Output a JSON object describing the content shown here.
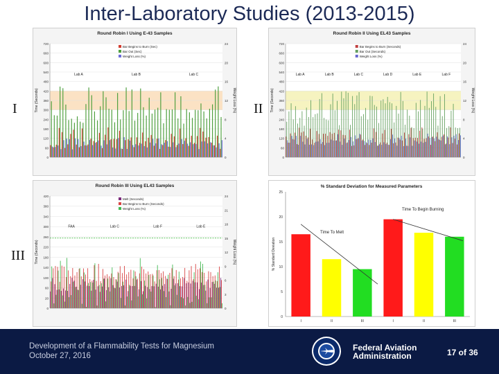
{
  "slide": {
    "title": "Inter-Laboratory Studies (2013-2015)",
    "label_I": "I",
    "label_II": "II",
    "label_III": "III"
  },
  "footer": {
    "line1": "Development of a Flammability Tests for Magnesium",
    "line2": "October 27, 2016",
    "agency_line1": "Federal Aviation",
    "agency_line2": "Administration",
    "page": "17 of 36",
    "seal_text": "FEDERAL AVIATION ADMINISTRATION"
  },
  "colors": {
    "title": "#1c2a56",
    "footer_bg": "#0b1a44",
    "band_orange": "#fbe2c4",
    "band_yellow": "#f6f3c0",
    "red": "#e01b1b",
    "yellow": "#f0f000",
    "green": "#22cc22"
  },
  "chart_data": [
    {
      "type": "bar",
      "title": "Round Robin I Using E-43 Samples",
      "ylabel": "Time (Seconds)",
      "y2label": "Weight Loss (%)",
      "ylim": [
        0,
        720
      ],
      "y2lim": [
        0,
        24
      ],
      "yticks": [
        "720",
        "660",
        "600",
        "540",
        "480",
        "420",
        "360",
        "300",
        "240",
        "180",
        "120",
        "60",
        "0"
      ],
      "y2ticks": [
        "24",
        "20",
        "16",
        "12",
        "8",
        "4",
        "0"
      ],
      "legend": [
        "Bar Begins to Burn (Sec)",
        "Bar Out (Sec)",
        "Weight Loss (%)"
      ],
      "legend_placement": "top",
      "groups": [
        "Lab A",
        "Lab B",
        "Lab C"
      ],
      "band": [
        300,
        420
      ],
      "points": 60,
      "series": [
        {
          "name": "Bar Begins to Burn (Sec)",
          "color": "#d23a2e",
          "level": 120,
          "spread": 70
        },
        {
          "name": "Bar Out (Sec)",
          "color": "#4c9e3c",
          "level": 330,
          "spread": 120
        },
        {
          "name": "Weight Loss (%)",
          "color": "#6a6ad8",
          "level": 90,
          "spread": 40
        }
      ]
    },
    {
      "type": "bar",
      "title": "Round Robin II Using EL43 Samples",
      "ylabel": "Time (Seconds)",
      "y2label": "Weight Loss (%)",
      "ylim": [
        0,
        720
      ],
      "y2lim": [
        0,
        24
      ],
      "yticks": [
        "720",
        "660",
        "600",
        "540",
        "480",
        "420",
        "360",
        "300",
        "240",
        "180",
        "120",
        "60",
        "0"
      ],
      "y2ticks": [
        "24",
        "20",
        "16",
        "12",
        "8",
        "4",
        "0"
      ],
      "legend": [
        "Bar Begins to Burn (Seconds)",
        "Bar Out (Seconds)",
        "Weight Loss (%)"
      ],
      "legend_placement": "top",
      "groups": [
        "Lab A",
        "Lab B",
        "Lab C",
        "Lab D",
        "Lab E",
        "Lab F"
      ],
      "band": [
        300,
        420
      ],
      "points": 80,
      "series": [
        {
          "name": "Bar Begins to Burn (Seconds)",
          "color": "#c04040",
          "level": 130,
          "spread": 60
        },
        {
          "name": "Bar Out (Seconds)",
          "color": "#64a060",
          "level": 300,
          "spread": 120
        },
        {
          "name": "Weight Loss (%)",
          "color": "#6868d0",
          "level": 110,
          "spread": 40
        }
      ]
    },
    {
      "type": "bar",
      "title": "Round Robin III Using EL43 Samples",
      "ylabel": "Time (Seconds)",
      "y2label": "Weight Loss (%)",
      "ylim": [
        0,
        480
      ],
      "y2lim": [
        0,
        24
      ],
      "yticks": [
        "420",
        "380",
        "340",
        "300",
        "260",
        "220",
        "180",
        "140",
        "100",
        "60",
        "20",
        "0"
      ],
      "y2ticks": [
        "24",
        "21",
        "18",
        "15",
        "12",
        "9",
        "6",
        "3",
        "0"
      ],
      "legend": [
        "Melt (Seconds)",
        "Bar Begins to Burn (Seconds)",
        "Weight Loss (%)"
      ],
      "legend_placement": "top",
      "groups": [
        "FAA",
        "Lab C",
        "Lab F",
        "Lab E"
      ],
      "threshold": 300,
      "points": 80,
      "series": [
        {
          "name": "Melt (Seconds)",
          "color": "#7a2a7a",
          "level": 100,
          "spread": 30
        },
        {
          "name": "Bar Begins to Burn (Seconds)",
          "color": "#d84040",
          "level": 150,
          "spread": 40
        },
        {
          "name": "Weight Loss (%)",
          "color": "#3fb84f",
          "level": 110,
          "spread": 110
        }
      ]
    },
    {
      "type": "bar",
      "title": "% Standard Deviation for Measured Parameters",
      "ylabel": "% Standard Deviation",
      "categories": [
        "I",
        "II",
        "III",
        "I",
        "II",
        "III"
      ],
      "values": [
        16.5,
        11.5,
        9.5,
        19.5,
        16.8,
        16.0
      ],
      "colors": [
        "#ff1a1a",
        "#ffff00",
        "#22dd22",
        "#ff1a1a",
        "#ffff00",
        "#22dd22"
      ],
      "ylim": [
        0,
        25
      ],
      "yticks": [
        "25",
        "20",
        "15",
        "10",
        "5",
        "0"
      ],
      "annotations": [
        "Time To Begin Burning",
        "Time To Melt"
      ],
      "trendline": [
        [
          0,
          18.5
        ],
        [
          2.5,
          6.5
        ]
      ]
    }
  ]
}
